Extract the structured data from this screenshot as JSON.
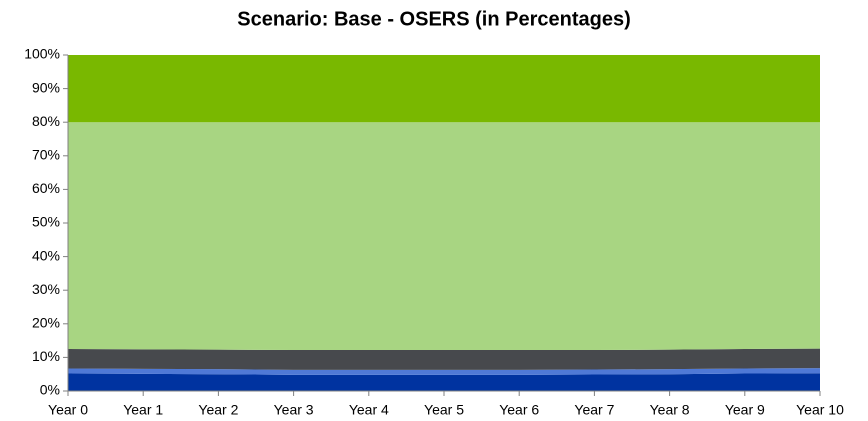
{
  "chart_data": {
    "type": "area",
    "stacked": true,
    "title": "Scenario: Base - OSERS (in Percentages)",
    "categories": [
      "Year 0",
      "Year 1",
      "Year 2",
      "Year 3",
      "Year 4",
      "Year 5",
      "Year 6",
      "Year 7",
      "Year 8",
      "Year 9",
      "Year 10"
    ],
    "series": [
      {
        "color": "#0033a0",
        "values": [
          5.2,
          5.1,
          5.0,
          4.8,
          4.8,
          4.8,
          4.8,
          4.9,
          5.0,
          5.2,
          5.3
        ]
      },
      {
        "color": "#4f79d6",
        "values": [
          1.5,
          1.5,
          1.5,
          1.5,
          1.5,
          1.5,
          1.5,
          1.5,
          1.5,
          1.5,
          1.5
        ]
      },
      {
        "color": "#47494d",
        "values": [
          5.8,
          5.8,
          5.8,
          5.9,
          5.9,
          5.9,
          5.9,
          5.8,
          5.8,
          5.8,
          5.8
        ]
      },
      {
        "color": "#a8d582",
        "values": [
          67.5,
          67.6,
          67.7,
          67.8,
          67.8,
          67.8,
          67.8,
          67.8,
          67.7,
          67.5,
          67.4
        ]
      },
      {
        "color": "#79b800",
        "values": [
          20,
          20,
          20,
          20,
          20,
          20,
          20,
          20,
          20,
          20,
          20
        ]
      }
    ],
    "ylim": [
      0,
      100
    ],
    "yticks": [
      {
        "value": 0,
        "label": "0%"
      },
      {
        "value": 10,
        "label": "10%"
      },
      {
        "value": 20,
        "label": "20%"
      },
      {
        "value": 30,
        "label": "30%"
      },
      {
        "value": 40,
        "label": "40%"
      },
      {
        "value": 50,
        "label": "50%"
      },
      {
        "value": 60,
        "label": "60%"
      },
      {
        "value": 70,
        "label": "70%"
      },
      {
        "value": 80,
        "label": "80%"
      },
      {
        "value": 90,
        "label": "90%"
      },
      {
        "value": 100,
        "label": "100%"
      }
    ]
  }
}
